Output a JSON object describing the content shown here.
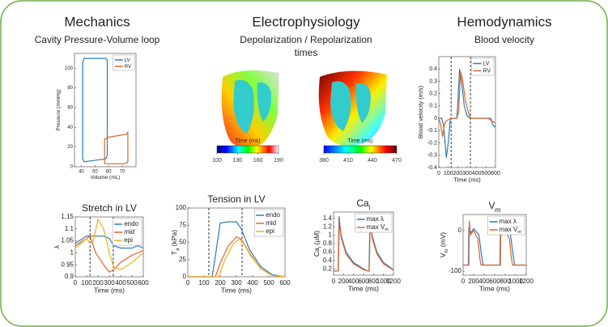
{
  "sections": [
    {
      "title": "Mechanics",
      "subtitle": "Cavity Pressure-Volume loop"
    },
    {
      "title": "Electrophysiology",
      "subtitle": "Depolarization / Repolarization",
      "subtitle2": "times"
    },
    {
      "title": "Hemodynamics",
      "subtitle": "Blood velocity"
    }
  ],
  "colorbars": [
    {
      "label": "Time (ms)",
      "ticks": [
        100,
        130,
        160,
        190
      ]
    },
    {
      "label": "Time (ms)",
      "ticks": [
        380,
        410,
        440,
        470
      ]
    }
  ],
  "chart_data": [
    {
      "type": "line",
      "xlabel": "Volume (mL)",
      "ylabel": "Pressure (mmHg)",
      "xlim": [
        35,
        80
      ],
      "xticks": [
        40,
        50,
        60,
        70
      ],
      "ylim": [
        0,
        115
      ],
      "yticks": [
        0,
        20,
        40,
        60,
        80,
        100
      ],
      "legend": "upper right",
      "series": [
        {
          "name": "LV",
          "color": "#2b7bba",
          "x": [
            41,
            41,
            42,
            58,
            59,
            59,
            58,
            42,
            41
          ],
          "values": [
            8,
            105,
            110,
            110,
            108,
            12,
            8,
            5,
            8
          ]
        },
        {
          "name": "RV",
          "color": "#e0642a",
          "x": [
            57,
            57,
            60,
            73,
            74,
            74,
            72,
            58,
            57
          ],
          "values": [
            3,
            28,
            30,
            33,
            35,
            5,
            3,
            3,
            3
          ]
        }
      ]
    },
    {
      "type": "line",
      "xlabel": "Time (ms)",
      "ylabel": "Blood velocity (m/s)",
      "xlim": [
        0,
        600
      ],
      "xticks": [
        0,
        100,
        200,
        300,
        400,
        500,
        600
      ],
      "ylim": [
        -0.4,
        0.5
      ],
      "yticks": [
        -0.4,
        -0.3,
        -0.2,
        -0.1,
        0,
        0.1,
        0.2,
        0.3,
        0.4
      ],
      "legend": "upper right",
      "vlines": [
        130,
        335
      ],
      "series": [
        {
          "name": "LV",
          "color": "#2b7bba",
          "x": [
            0,
            30,
            50,
            80,
            100,
            120,
            130,
            190,
            200,
            220,
            240,
            270,
            300,
            330,
            500,
            550,
            570,
            590,
            600
          ],
          "values": [
            0,
            0,
            -0.05,
            -0.32,
            -0.2,
            -0.02,
            0,
            0,
            0.1,
            0.4,
            0.3,
            0.1,
            0.02,
            0,
            0,
            0,
            -0.05,
            -0.07,
            -0.06
          ]
        },
        {
          "name": "RV",
          "color": "#e0642a",
          "x": [
            0,
            20,
            40,
            60,
            80,
            130,
            190,
            210,
            230,
            250,
            280,
            320,
            340,
            520,
            560,
            600
          ],
          "values": [
            0,
            -0.05,
            -0.15,
            -0.05,
            -0.02,
            0,
            0,
            0.05,
            0.38,
            0.32,
            0.15,
            0.03,
            0,
            0,
            -0.02,
            -0.04
          ]
        }
      ]
    },
    {
      "type": "line",
      "title": "Stretch in LV",
      "xlabel": "Time (ms)",
      "ylabel": "λ",
      "xlim": [
        0,
        600
      ],
      "xticks": [
        0,
        100,
        200,
        300,
        400,
        500,
        600
      ],
      "ylim": [
        0.9,
        1.15
      ],
      "yticks": [
        0.9,
        0.95,
        1,
        1.05,
        1.1,
        1.15
      ],
      "legend": "upper right",
      "vlines": [
        130,
        335
      ],
      "series": [
        {
          "name": "endo",
          "color": "#2b7bba",
          "x": [
            0,
            100,
            130,
            180,
            250,
            300,
            340,
            400,
            500,
            550,
            600
          ],
          "values": [
            1.04,
            1.07,
            1.07,
            1.07,
            1.07,
            1.06,
            1.03,
            1.02,
            1.02,
            1.03,
            1.02
          ]
        },
        {
          "name": "mid",
          "color": "#e0642a",
          "x": [
            0,
            100,
            130,
            180,
            250,
            300,
            340,
            400,
            500,
            600
          ],
          "values": [
            1.03,
            1.06,
            1.07,
            1.0,
            0.95,
            0.92,
            0.93,
            0.96,
            0.99,
            1.01
          ]
        },
        {
          "name": "epi",
          "color": "#edb120",
          "x": [
            0,
            100,
            130,
            160,
            200,
            250,
            300,
            340,
            400,
            500,
            600
          ],
          "values": [
            1.02,
            1.06,
            1.04,
            1.05,
            1.14,
            1.1,
            1.0,
            0.94,
            0.93,
            0.96,
            1.0
          ]
        }
      ]
    },
    {
      "type": "line",
      "title": "Tension in LV",
      "xlabel": "Time (ms)",
      "ylabel": "T",
      "ylabel_sub": "a",
      "ylabel_unit": " (kPa)",
      "xlim": [
        0,
        600
      ],
      "xticks": [
        0,
        100,
        200,
        300,
        400,
        500,
        600
      ],
      "ylim": [
        0,
        100
      ],
      "yticks": [
        0,
        25,
        50,
        75,
        100
      ],
      "legend": "upper right",
      "vlines": [
        130,
        335
      ],
      "series": [
        {
          "name": "endo",
          "color": "#2b7bba",
          "x": [
            0,
            150,
            170,
            200,
            250,
            300,
            330,
            380,
            450,
            520,
            600
          ],
          "values": [
            0,
            0,
            30,
            78,
            80,
            80,
            70,
            40,
            15,
            3,
            0
          ]
        },
        {
          "name": "mid",
          "color": "#e0642a",
          "x": [
            0,
            170,
            200,
            250,
            300,
            330,
            380,
            450,
            520,
            600
          ],
          "values": [
            0,
            0,
            20,
            45,
            58,
            55,
            35,
            12,
            2,
            0
          ]
        },
        {
          "name": "epi",
          "color": "#edb120",
          "x": [
            0,
            190,
            230,
            280,
            320,
            340,
            390,
            450,
            520,
            600
          ],
          "values": [
            0,
            0,
            25,
            48,
            55,
            50,
            30,
            12,
            2,
            0
          ]
        }
      ]
    },
    {
      "type": "line",
      "title": "Ca",
      "title_sub": "i",
      "xlabel": "Time (ms)",
      "ylabel": "Ca",
      "ylabel_sub": "i",
      "ylabel_unit": " (μM)",
      "xlim": [
        0,
        1200
      ],
      "xticks": [
        0,
        200,
        400,
        600,
        800,
        1000,
        1200
      ],
      "ylim": [
        0.05,
        1.55
      ],
      "yticks": [
        0.2,
        0.4,
        0.6,
        0.8,
        1,
        1.2,
        1.4
      ],
      "legend": "upper right",
      "series": [
        {
          "name": "max λ",
          "color": "#2b7bba",
          "x": [
            0,
            90,
            110,
            150,
            250,
            400,
            600,
            690,
            710,
            730,
            770,
            870,
            1000,
            1200
          ],
          "values": [
            0.15,
            0.15,
            1.45,
            1.0,
            0.6,
            0.35,
            0.2,
            0.15,
            0.15,
            1.45,
            1.0,
            0.6,
            0.35,
            0.18
          ]
        },
        {
          "name": "max V",
          "name_sub": "m",
          "color": "#e0642a",
          "x": [
            0,
            95,
            115,
            150,
            250,
            400,
            600,
            695,
            715,
            735,
            770,
            870,
            1000,
            1200
          ],
          "values": [
            0.15,
            0.15,
            1.35,
            0.95,
            0.55,
            0.32,
            0.18,
            0.15,
            0.15,
            1.35,
            0.95,
            0.55,
            0.32,
            0.17
          ]
        }
      ]
    },
    {
      "type": "line",
      "title": "V",
      "title_sub": "m",
      "xlabel": "Time (ms)",
      "ylabel": "V",
      "ylabel_sub": "m",
      "ylabel_unit": " (mV)",
      "xlim": [
        0,
        1200
      ],
      "xticks": [
        0,
        200,
        400,
        600,
        800,
        1000,
        1200
      ],
      "ylim": [
        -110,
        40
      ],
      "yticks": [
        -100,
        0
      ],
      "legend": "upper right",
      "series": [
        {
          "name": "max λ",
          "color": "#2b7bba",
          "x": [
            0,
            100,
            110,
            150,
            200,
            300,
            350,
            380,
            700,
            710,
            750,
            800,
            900,
            950,
            980,
            1200
          ],
          "values": [
            -85,
            -85,
            5,
            -5,
            5,
            -10,
            -60,
            -85,
            -85,
            5,
            -5,
            5,
            -10,
            -60,
            -85,
            -85
          ]
        },
        {
          "name": "max V",
          "name_sub": "m",
          "color": "#e0642a",
          "x": [
            0,
            110,
            120,
            140,
            200,
            280,
            320,
            340,
            710,
            720,
            740,
            800,
            880,
            920,
            940,
            1200
          ],
          "values": [
            -85,
            -85,
            25,
            -10,
            0,
            -20,
            -70,
            -85,
            -85,
            25,
            -10,
            0,
            -20,
            -70,
            -85,
            -85
          ]
        }
      ]
    }
  ]
}
